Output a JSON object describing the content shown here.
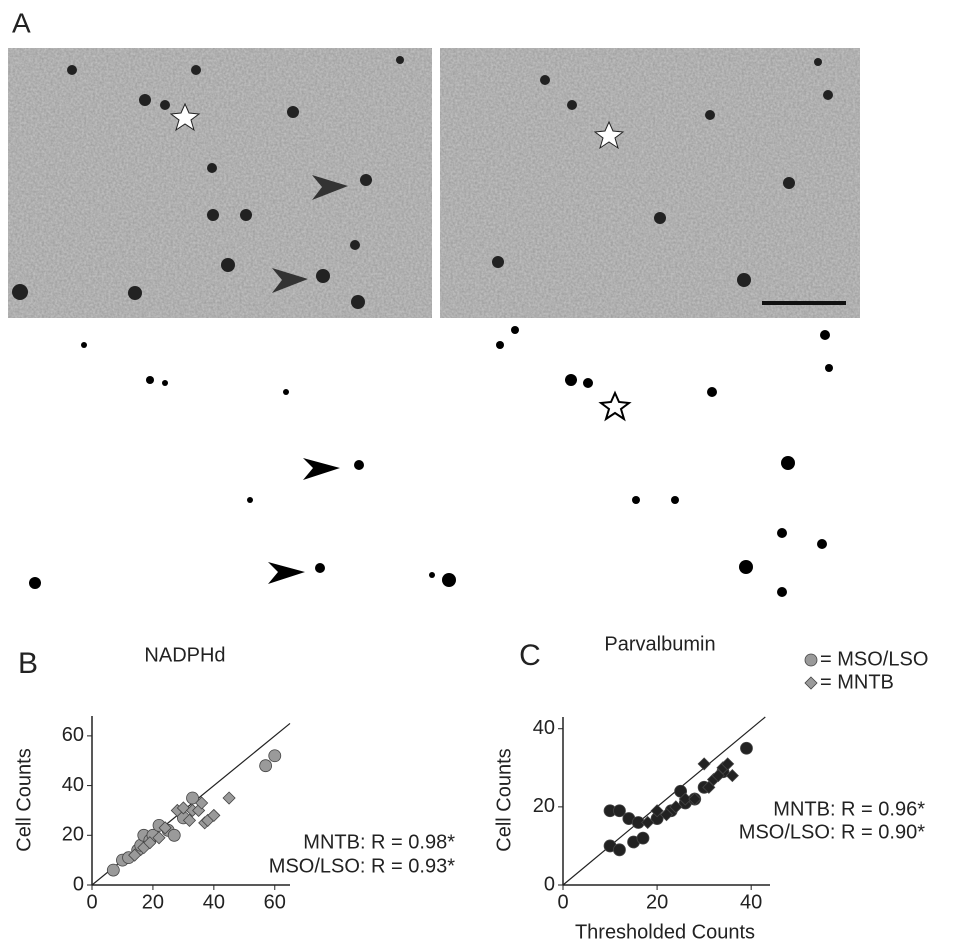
{
  "panel_a": {
    "label": "A"
  },
  "legend": {
    "entries": [
      {
        "marker": "circle",
        "color": "#9a9a9a",
        "label": "= MSO/LSO"
      },
      {
        "marker": "diamond",
        "color": "#9a9a9a",
        "label": "= MNTB"
      }
    ]
  },
  "chart_data": [
    {
      "type": "scatter",
      "panel_label": "B",
      "title": "NADPHd",
      "y_label": "Cell Counts",
      "xlim": [
        0,
        65
      ],
      "ylim": [
        0,
        68
      ],
      "xticks": [
        0,
        20,
        40,
        60
      ],
      "yticks": [
        0,
        20,
        40,
        60
      ],
      "identity_line": true,
      "annotations": [
        "MNTB: R = 0.98*",
        "MSO/LSO: R = 0.93*"
      ],
      "series": [
        {
          "marker": "circle",
          "color": "#9a9a9a",
          "x": [
            7,
            10,
            12,
            15,
            16,
            17,
            19,
            20,
            22,
            25,
            27,
            30,
            33,
            57,
            60
          ],
          "values": [
            6,
            10,
            11,
            14,
            16,
            20,
            18,
            20,
            24,
            22,
            20,
            27,
            35,
            48,
            52
          ]
        },
        {
          "marker": "diamond",
          "color": "#9a9a9a",
          "x": [
            14,
            17,
            19,
            22,
            24,
            28,
            30,
            32,
            33,
            35,
            36,
            37,
            38,
            40,
            45
          ],
          "values": [
            12,
            15,
            17,
            19,
            23,
            30,
            31,
            26,
            30,
            30,
            33,
            25,
            26,
            28,
            35
          ]
        }
      ]
    },
    {
      "type": "scatter",
      "panel_label": "C",
      "title": "Parvalbumin",
      "y_label": "Cell Counts",
      "x_label": "Thresholded Counts",
      "xlim": [
        0,
        44
      ],
      "ylim": [
        0,
        43
      ],
      "xticks": [
        0,
        20,
        40
      ],
      "yticks": [
        0,
        20,
        40
      ],
      "identity_line": true,
      "annotations": [
        "MNTB: R = 0.96*",
        "MSO/LSO: R = 0.90*"
      ],
      "series": [
        {
          "marker": "circle",
          "color": "#222222",
          "x": [
            10,
            12,
            10,
            12,
            14,
            16,
            15,
            17,
            20,
            23,
            25,
            26,
            28,
            30,
            34,
            39
          ],
          "values": [
            19,
            19,
            10,
            9,
            17,
            16,
            11,
            12,
            17,
            19,
            24,
            21,
            22,
            25,
            29,
            35
          ]
        },
        {
          "marker": "diamond",
          "color": "#222222",
          "x": [
            18,
            20,
            22,
            24,
            26,
            28,
            30,
            31,
            32,
            33,
            34,
            35,
            36
          ],
          "values": [
            16,
            19,
            18,
            20,
            22,
            22,
            31,
            25,
            27,
            28,
            30,
            31,
            28
          ]
        }
      ]
    }
  ]
}
